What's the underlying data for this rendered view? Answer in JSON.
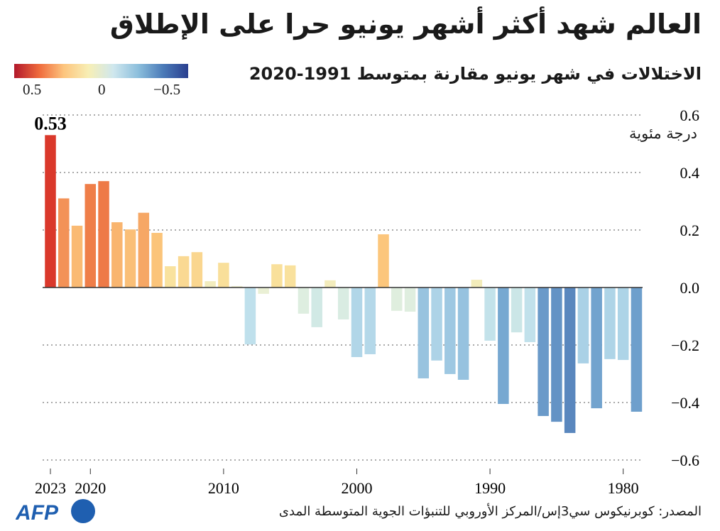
{
  "title": "العالم شهد أكثر أشهر يونيو حرا على الإطلاق",
  "subtitle": "الاختلالات في شهر يونيو مقارنة بمتوسط 1991-2020",
  "source": "المصدر: كوبرنيكوس سي3إس/المركز الأوروبي للتنبؤات الجوية المتوسطة المدى",
  "logo_text": "AFP",
  "legend": {
    "labels": [
      "0.5",
      "0",
      "−0.5"
    ],
    "colors": [
      "#b2182b",
      "#fdc57e",
      "#f7efb6",
      "#2a3f8f"
    ]
  },
  "chart_data": {
    "type": "bar",
    "ylabel": "درجة مئوية",
    "ylim": [
      -0.6,
      0.6
    ],
    "yticks": [
      "0.6",
      "0.4",
      "0.2",
      "0.0",
      "−0.2",
      "−0.4",
      "−0.6"
    ],
    "ytick_values": [
      0.6,
      0.4,
      0.2,
      0.0,
      -0.2,
      -0.4,
      -0.6
    ],
    "xtick_labels": [
      "2023",
      "2020",
      "2010",
      "2000",
      "1990",
      "1980"
    ],
    "grid": true,
    "annotation": {
      "year": 2023,
      "text": "0.53"
    },
    "years": [
      2023,
      2022,
      2021,
      2020,
      2019,
      2018,
      2017,
      2016,
      2015,
      2014,
      2013,
      2012,
      2011,
      2010,
      2009,
      2008,
      2007,
      2006,
      2005,
      2004,
      2003,
      2002,
      2001,
      2000,
      1999,
      1998,
      1997,
      1996,
      1995,
      1994,
      1993,
      1992,
      1991,
      1990,
      1989,
      1988,
      1987,
      1986,
      1985,
      1984,
      1983,
      1982,
      1981,
      1980,
      1979
    ],
    "values": [
      0.53,
      0.31,
      0.215,
      0.36,
      0.37,
      0.227,
      0.202,
      0.26,
      0.19,
      0.074,
      0.109,
      0.123,
      0.022,
      0.086,
      0.005,
      -0.198,
      -0.022,
      0.081,
      0.077,
      -0.091,
      -0.138,
      0.025,
      -0.111,
      -0.242,
      -0.232,
      0.185,
      -0.081,
      -0.084,
      -0.316,
      -0.254,
      -0.301,
      -0.321,
      0.027,
      -0.185,
      -0.405,
      -0.156,
      -0.19,
      -0.447,
      -0.467,
      -0.506,
      -0.264,
      -0.42,
      -0.249,
      -0.252,
      -0.432
    ]
  }
}
